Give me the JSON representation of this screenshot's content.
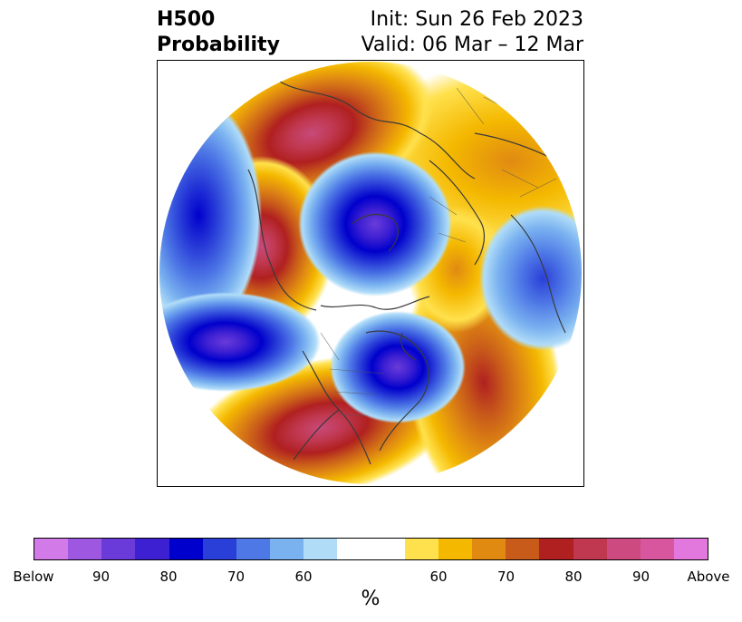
{
  "header": {
    "title_line1": "H500",
    "title_line2": "Probability",
    "init": "Init: Sun 26 Feb 2023",
    "valid": "Valid: 06 Mar – 12 Mar"
  },
  "map": {
    "projection": "north-polar-stereographic",
    "field": "500 hPa height probability",
    "features": [
      {
        "name": "northern-europe-above",
        "category": "above",
        "max_prob": "80-90"
      },
      {
        "name": "east-pacific-above",
        "category": "above",
        "max_prob": "80-90"
      },
      {
        "name": "central-atlantic-above",
        "category": "above",
        "max_prob": "80-90"
      },
      {
        "name": "western-us-above",
        "category": "above",
        "max_prob": "80-90"
      },
      {
        "name": "northeast-asia-above",
        "category": "above",
        "max_prob": "60-70"
      },
      {
        "name": "arctic-siberia-below",
        "category": "below",
        "max_prob": "90+"
      },
      {
        "name": "eastern-canada-below",
        "category": "below",
        "max_prob": "80-90"
      },
      {
        "name": "north-pacific-below",
        "category": "below",
        "max_prob": "80-90"
      },
      {
        "name": "west-atlantic-below",
        "category": "below",
        "max_prob": "70-80"
      },
      {
        "name": "central-europe-below",
        "category": "below",
        "max_prob": "70-80"
      }
    ]
  },
  "colorbar": {
    "unit_label": "%",
    "colors": [
      "#d27ae8",
      "#9e57e0",
      "#6a3bd9",
      "#3d20d2",
      "#0000cc",
      "#2a3fd8",
      "#4e78e6",
      "#7ab2f0",
      "#b0dcf8",
      "#ffffff",
      "#ffffff",
      "#ffe14d",
      "#f4b800",
      "#e08a12",
      "#c85a1a",
      "#b02020",
      "#c03850",
      "#cd4a80",
      "#d8569e",
      "#e278de"
    ],
    "ticks": [
      "Below",
      "90",
      "80",
      "70",
      "60",
      "60",
      "70",
      "80",
      "90",
      "Above"
    ]
  }
}
